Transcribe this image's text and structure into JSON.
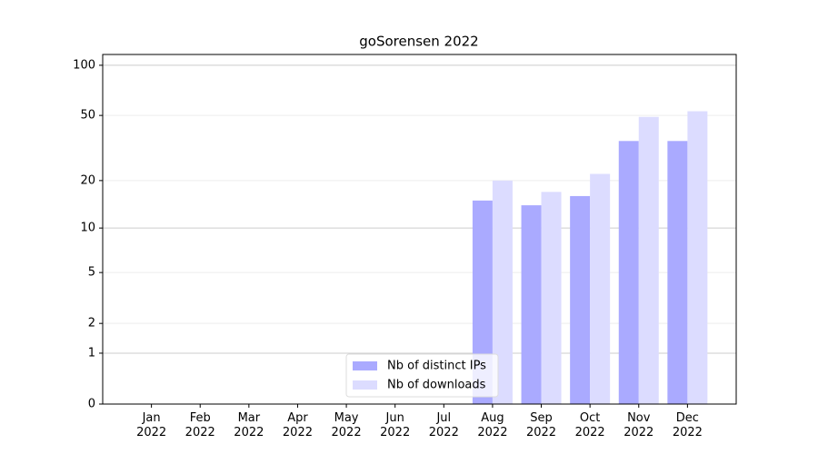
{
  "chart_data": {
    "type": "bar",
    "title": "goSorensen 2022",
    "categories": [
      "Jan 2022",
      "Feb 2022",
      "Mar 2022",
      "Apr 2022",
      "May 2022",
      "Jun 2022",
      "Jul 2022",
      "Aug 2022",
      "Sep 2022",
      "Oct 2022",
      "Nov 2022",
      "Dec 2022"
    ],
    "series": [
      {
        "name": "Nb of distinct IPs",
        "color": "#aaaaff",
        "values": [
          0,
          0,
          0,
          0,
          0,
          0,
          0,
          15,
          14,
          16,
          35,
          35
        ]
      },
      {
        "name": "Nb of downloads",
        "color": "#dcdcff",
        "values": [
          0,
          0,
          0,
          0,
          0,
          0,
          0,
          20,
          17,
          22,
          49,
          53
        ]
      }
    ],
    "yscale": "symlog",
    "ylim": [
      0,
      116
    ],
    "yticks": [
      0,
      1,
      2,
      5,
      10,
      20,
      50,
      100
    ],
    "grid": true,
    "legend": "lower center"
  }
}
